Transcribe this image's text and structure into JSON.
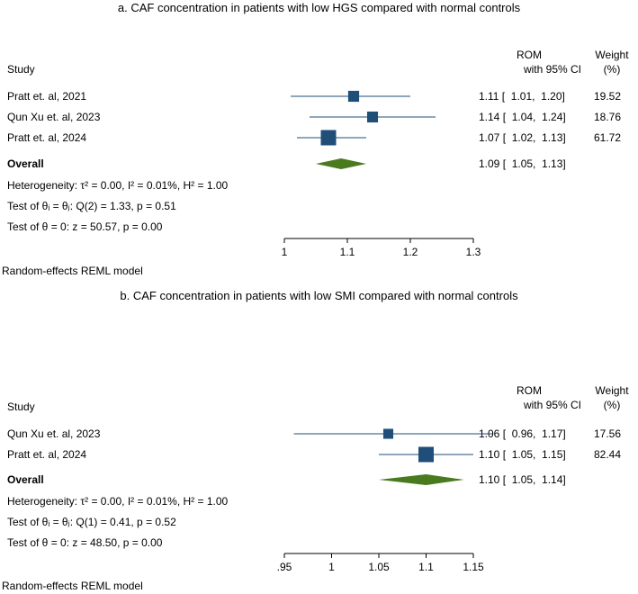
{
  "chart_data": [
    {
      "type": "forest",
      "title": "a. CAF concentration in patients with low HGS compared with normal controls",
      "headers": {
        "study": "Study",
        "rom": "ROM",
        "ci": "with 95% CI",
        "weight": "Weight",
        "weight_unit": "(%)"
      },
      "studies": [
        {
          "name": "Pratt et. al, 2021",
          "rom": 1.11,
          "lo": 1.01,
          "hi": 1.2,
          "ci_text": "1.11 [  1.01,  1.20]",
          "weight": 19.52,
          "weight_text": "19.52"
        },
        {
          "name": "Qun Xu et. al, 2023",
          "rom": 1.14,
          "lo": 1.04,
          "hi": 1.24,
          "ci_text": "1.14 [  1.04,  1.24]",
          "weight": 18.76,
          "weight_text": "18.76"
        },
        {
          "name": "Pratt et. al, 2024",
          "rom": 1.07,
          "lo": 1.02,
          "hi": 1.13,
          "ci_text": "1.07 [  1.02,  1.13]",
          "weight": 61.72,
          "weight_text": "61.72"
        }
      ],
      "overall": {
        "label": "Overall",
        "rom": 1.09,
        "lo": 1.05,
        "hi": 1.13,
        "ci_text": "1.09 [  1.05,  1.13]"
      },
      "stats": [
        "Heterogeneity: τ² = 0.00, I² = 0.01%, H² = 1.00",
        "Test of θᵢ = θⱼ: Q(2) = 1.33, p = 0.51",
        "Test of θ = 0: z = 50.57, p = 0.00"
      ],
      "x_ticks": [
        1,
        1.1,
        1.2,
        1.3
      ],
      "x_tick_labels": [
        "1",
        "1.1",
        "1.2",
        "1.3"
      ],
      "xlim": [
        1,
        1.3
      ],
      "footnote": "Random-effects REML model",
      "marker_color": "#1f4e79",
      "diamond_color": "#4a7a1e"
    },
    {
      "type": "forest",
      "title": "b. CAF concentration in patients with low SMI compared with normal controls",
      "headers": {
        "study": "Study",
        "rom": "ROM",
        "ci": "with 95% CI",
        "weight": "Weight",
        "weight_unit": "(%)"
      },
      "studies": [
        {
          "name": "Qun Xu et. al, 2023",
          "rom": 1.06,
          "lo": 0.96,
          "hi": 1.17,
          "ci_text": "1.06 [  0.96,  1.17]",
          "weight": 17.56,
          "weight_text": "17.56"
        },
        {
          "name": "Pratt et. al, 2024",
          "rom": 1.1,
          "lo": 1.05,
          "hi": 1.15,
          "ci_text": "1.10 [  1.05,  1.15]",
          "weight": 82.44,
          "weight_text": "82.44"
        }
      ],
      "overall": {
        "label": "Overall",
        "rom": 1.1,
        "lo": 1.05,
        "hi": 1.14,
        "ci_text": "1.10 [  1.05,  1.14]"
      },
      "stats": [
        "Heterogeneity: τ² = 0.00, I² = 0.01%, H² = 1.00",
        "Test of θᵢ = θⱼ: Q(1) = 0.41, p = 0.52",
        "Test of θ = 0: z = 48.50, p = 0.00"
      ],
      "x_ticks": [
        0.95,
        1,
        1.05,
        1.1,
        1.15
      ],
      "x_tick_labels": [
        ".95",
        "1",
        "1.05",
        "1.1",
        "1.15"
      ],
      "xlim": [
        0.95,
        1.15
      ],
      "footnote": "Random-effects REML model",
      "marker_color": "#1f4e79",
      "diamond_color": "#4a7a1e"
    }
  ]
}
